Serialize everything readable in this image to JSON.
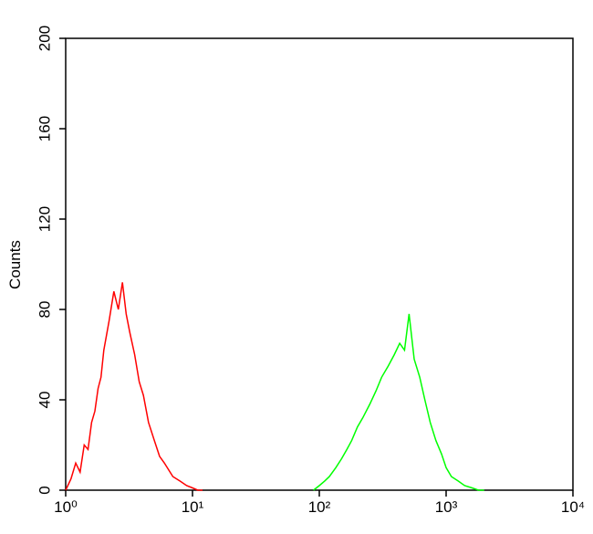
{
  "chart_data": {
    "type": "line",
    "ylabel": "Counts",
    "xscale": "log",
    "xlim": [
      1,
      10000
    ],
    "ylim": [
      0,
      200
    ],
    "xticks": [
      {
        "value": 1,
        "label": "10⁰"
      },
      {
        "value": 10,
        "label": "10¹"
      },
      {
        "value": 100,
        "label": "10²"
      },
      {
        "value": 1000,
        "label": "10³"
      },
      {
        "value": 10000,
        "label": "10⁴"
      }
    ],
    "yticks": [
      0,
      40,
      80,
      120,
      160,
      200
    ],
    "series": [
      {
        "color": "#ff0000",
        "x": [
          1.0,
          1.1,
          1.2,
          1.3,
          1.4,
          1.5,
          1.6,
          1.7,
          1.8,
          1.9,
          2.0,
          2.2,
          2.4,
          2.6,
          2.8,
          3.0,
          3.2,
          3.5,
          3.8,
          4.1,
          4.5,
          5,
          5.5,
          6,
          7,
          8,
          9,
          10,
          11,
          12
        ],
        "values": [
          0,
          5,
          12,
          8,
          20,
          18,
          30,
          35,
          45,
          50,
          62,
          75,
          88,
          80,
          92,
          78,
          70,
          60,
          48,
          42,
          30,
          22,
          15,
          12,
          6,
          4,
          2,
          1,
          0,
          0
        ]
      },
      {
        "color": "#00ff00",
        "x": [
          90,
          100,
          110,
          120,
          135,
          150,
          165,
          180,
          200,
          220,
          250,
          280,
          310,
          350,
          390,
          430,
          470,
          510,
          560,
          620,
          680,
          750,
          830,
          920,
          1000,
          1100,
          1250,
          1400,
          1600,
          1800,
          2000
        ],
        "values": [
          0,
          2,
          4,
          6,
          10,
          14,
          18,
          22,
          28,
          32,
          38,
          44,
          50,
          55,
          60,
          65,
          62,
          78,
          58,
          50,
          40,
          30,
          22,
          16,
          10,
          6,
          4,
          2,
          1,
          0,
          0
        ]
      }
    ]
  }
}
